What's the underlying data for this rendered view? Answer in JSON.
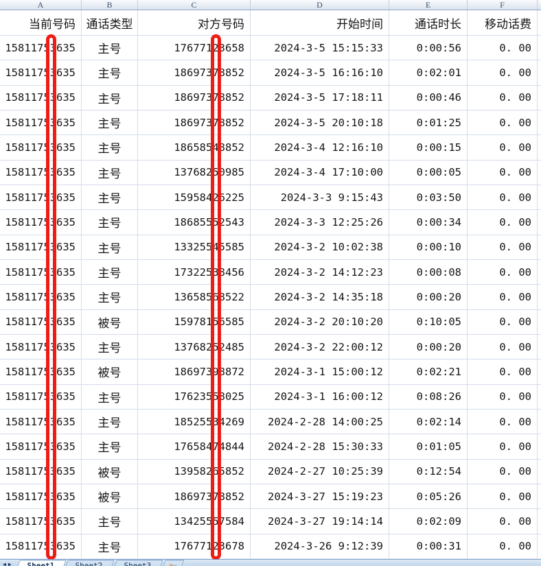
{
  "sheet": {
    "column_letters": [
      "A",
      "B",
      "C",
      "D",
      "E",
      "F"
    ],
    "header_row": {
      "a": "当前号码",
      "b": "通话类型",
      "c": "对方号码",
      "d": "开始时间",
      "e": "通话时长",
      "f": "移动话费"
    },
    "rows": [
      [
        "15811753635",
        "主号",
        "17677123658",
        "2024-3-5 15:15:33",
        "0:00:56",
        "0. 00"
      ],
      [
        "15811753635",
        "主号",
        "18697378852",
        "2024-3-5 16:16:10",
        "0:02:01",
        "0. 00"
      ],
      [
        "15811753635",
        "主号",
        "18697378852",
        "2024-3-5 17:18:11",
        "0:00:46",
        "0. 00"
      ],
      [
        "15811753635",
        "主号",
        "18697378852",
        "2024-3-5 20:10:18",
        "0:01:25",
        "0. 00"
      ],
      [
        "15811753635",
        "主号",
        "18658548852",
        "2024-3-4 12:16:10",
        "0:00:15",
        "0. 00"
      ],
      [
        "15811753635",
        "主号",
        "13768250985",
        "2024-3-4 17:10:00",
        "0:00:05",
        "0. 00"
      ],
      [
        "15811753635",
        "主号",
        "15958426225",
        "2024-3-3 9:15:43",
        "0:03:50",
        "0. 00"
      ],
      [
        "15811753635",
        "主号",
        "18685552543",
        "2024-3-3 12:25:26",
        "0:00:34",
        "0. 00"
      ],
      [
        "15811753635",
        "主号",
        "13325545585",
        "2024-3-2 10:02:38",
        "0:00:10",
        "0. 00"
      ],
      [
        "15811753635",
        "主号",
        "17322538456",
        "2024-3-2 14:12:23",
        "0:00:08",
        "0. 00"
      ],
      [
        "15811753635",
        "主号",
        "13658568522",
        "2024-3-2 14:35:18",
        "0:00:20",
        "0. 00"
      ],
      [
        "15811753635",
        "被号",
        "15978156585",
        "2024-3-2 20:10:20",
        "0:10:05",
        "0. 00"
      ],
      [
        "15811753635",
        "主号",
        "13768252485",
        "2024-3-2 22:00:12",
        "0:00:20",
        "0. 00"
      ],
      [
        "15811753635",
        "被号",
        "18697398872",
        "2024-3-1 15:00:12",
        "0:02:21",
        "0. 00"
      ],
      [
        "15811753635",
        "主号",
        "17623558025",
        "2024-3-1 16:00:12",
        "0:08:26",
        "0. 00"
      ],
      [
        "15811753635",
        "主号",
        "18525534269",
        "2024-2-28 14:00:25",
        "0:02:14",
        "0. 00"
      ],
      [
        "15811753635",
        "主号",
        "17658474844",
        "2024-2-28 15:30:33",
        "0:01:05",
        "0. 00"
      ],
      [
        "15811753635",
        "被号",
        "13958265852",
        "2024-2-27 10:25:39",
        "0:12:54",
        "0. 00"
      ],
      [
        "15811753635",
        "被号",
        "18697378852",
        "2024-3-27 15:19:23",
        "0:05:26",
        "0. 00"
      ],
      [
        "15811753635",
        "主号",
        "13425557584",
        "2024-3-27 19:14:14",
        "0:02:09",
        "0. 00"
      ],
      [
        "15811753635",
        "主号",
        "17677123678",
        "2024-3-26 9:12:39",
        "0:00:31",
        "0. 00"
      ]
    ]
  },
  "annotations": {
    "redaction_bars": {
      "color": "#ed1d15",
      "count": 2,
      "covers": [
        "column A phone number 7th digit",
        "column C phone number 7th digit"
      ]
    }
  },
  "tab_bar": {
    "nav": {
      "prev": "◀",
      "next": "▶"
    },
    "tabs": [
      {
        "label": "Sheet1",
        "active": true
      },
      {
        "label": "Sheet2",
        "active": false
      },
      {
        "label": "Sheet3",
        "active": false
      }
    ],
    "insert_icon": "✱"
  }
}
